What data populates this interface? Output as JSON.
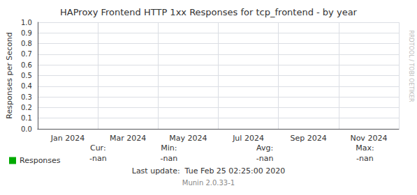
{
  "chart_data": {
    "type": "line",
    "title": "HAProxy Frontend HTTP 1xx Responses for tcp_frontend - by year",
    "ylabel": "Responses per Second",
    "categories": [
      "Jan 2024",
      "Mar 2024",
      "May 2024",
      "Jul 2024",
      "Sep 2024",
      "Nov 2024"
    ],
    "series": [
      {
        "name": "Responses",
        "color": "#00aa00",
        "values": [
          null,
          null,
          null,
          null,
          null,
          null
        ]
      }
    ],
    "ylim": [
      0.0,
      1.0
    ],
    "yticks": [
      {
        "value": 0.0,
        "label": "0.0"
      },
      {
        "value": 0.1,
        "label": "0.1"
      },
      {
        "value": 0.2,
        "label": "0.2"
      },
      {
        "value": 0.3,
        "label": "0.3"
      },
      {
        "value": 0.4,
        "label": "0.4"
      },
      {
        "value": 0.5,
        "label": "0.5"
      },
      {
        "value": 0.6,
        "label": "0.6"
      },
      {
        "value": 0.7,
        "label": "0.7"
      },
      {
        "value": 0.8,
        "label": "0.8"
      },
      {
        "value": 0.9,
        "label": "0.9"
      },
      {
        "value": 1.0,
        "label": "1.0"
      }
    ],
    "grid": true,
    "legend": "bottom left",
    "annotations": [
      [
        "Cur:",
        "Min:",
        "Avg:",
        "Max:"
      ],
      [
        "-nan",
        "-nan",
        "-nan",
        "-nan"
      ],
      [
        "Last update:  Tue Feb 25 02:25:00 2020"
      ],
      [
        "Munin 2.0.33-1"
      ],
      [
        "RRDTOOL / TOBI OETIKER"
      ]
    ]
  }
}
